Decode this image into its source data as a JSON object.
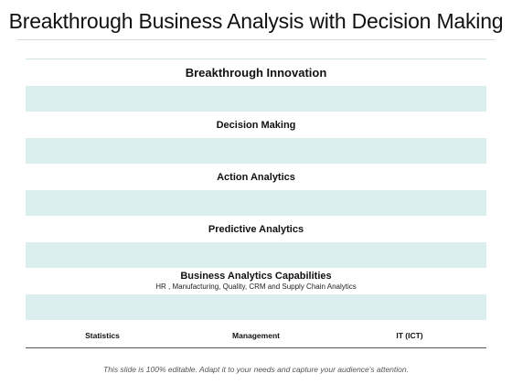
{
  "slide": {
    "title": "Breakthrough Business Analysis with Decision Making",
    "footer": "This slide is 100% editable. Adapt it to your needs and capture your audience's attention."
  },
  "pyramid": {
    "top": "Breakthrough Innovation",
    "levels": [
      "Decision Making",
      "Action Analytics",
      "Predictive Analytics"
    ],
    "capabilities": {
      "title": "Business Analytics Capabilities",
      "subtitle": "HR , Manufacturing, Quality, CRM and Supply Chain Analytics"
    },
    "foundation": [
      "Statistics",
      "Management",
      "IT  (ICT)"
    ],
    "band_color": "#dcefef"
  }
}
